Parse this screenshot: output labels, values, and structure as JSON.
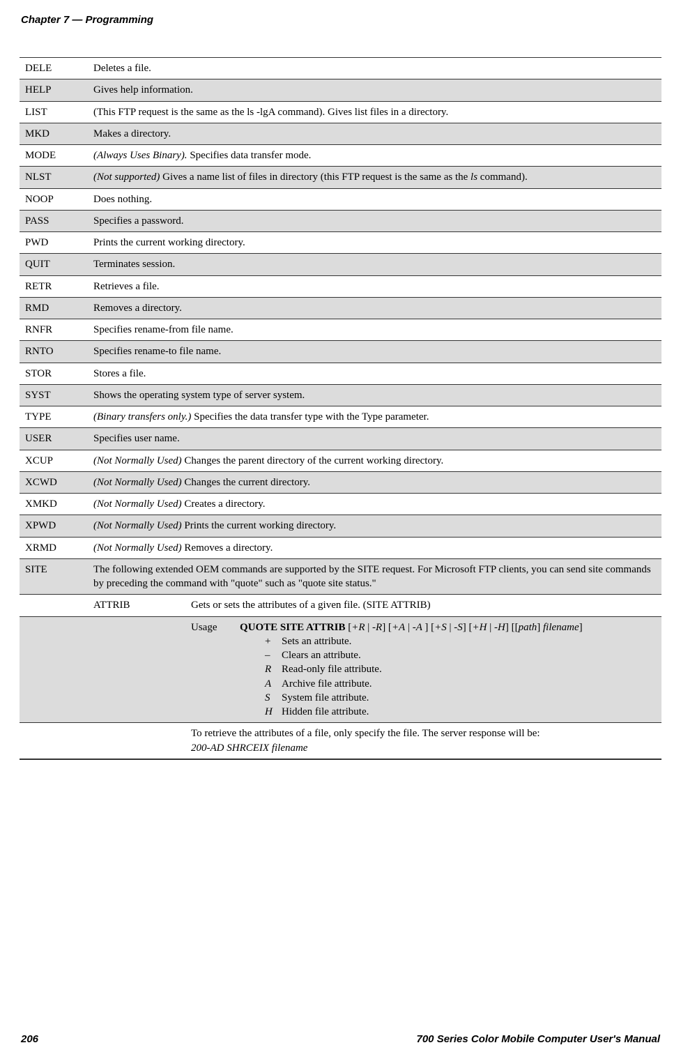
{
  "header": {
    "chapter": "Chapter 7",
    "sep": " —  ",
    "title": "Programming"
  },
  "footer": {
    "page": "206",
    "title": "700 Series Color Mobile Computer User's Manual"
  },
  "rows": [
    {
      "cmd": "DELE",
      "desc": "Deletes a file.",
      "grey": false
    },
    {
      "cmd": "HELP",
      "desc": "Gives help information.",
      "grey": true
    },
    {
      "cmd": "LIST",
      "desc": "(This FTP request is the same as the ls -lgA command). Gives list files in a directory.",
      "grey": false
    },
    {
      "cmd": "MKD",
      "desc": "Makes a directory.",
      "grey": true
    },
    {
      "cmd": "MODE",
      "prefix_i": "(Always Uses Binary).",
      "desc": " Specifies data transfer mode.",
      "grey": false
    },
    {
      "cmd": "NLST",
      "prefix_i": "(Not supported)",
      "desc": " Gives a name list of files in directory (this FTP request is the same as the ",
      "mid_i": "ls",
      "desc2": " command).",
      "grey": true
    },
    {
      "cmd": "NOOP",
      "desc": "Does nothing.",
      "grey": false
    },
    {
      "cmd": "PASS",
      "desc": "Specifies a password.",
      "grey": true
    },
    {
      "cmd": "PWD",
      "desc": "Prints the current working directory.",
      "grey": false
    },
    {
      "cmd": "QUIT",
      "desc": "Terminates session.",
      "grey": true
    },
    {
      "cmd": "RETR",
      "desc": "Retrieves a file.",
      "grey": false
    },
    {
      "cmd": "RMD",
      "desc": "Removes a directory.",
      "grey": true
    },
    {
      "cmd": "RNFR",
      "desc": "Specifies rename-from file name.",
      "grey": false
    },
    {
      "cmd": "RNTO",
      "desc": "Specifies rename-to file name.",
      "grey": true
    },
    {
      "cmd": "STOR",
      "desc": "Stores a file.",
      "grey": false
    },
    {
      "cmd": "SYST",
      "desc": "Shows the operating system type of server system.",
      "grey": true
    },
    {
      "cmd": "TYPE",
      "prefix_i": "(Binary transfers only.)",
      "desc": " Specifies the data transfer type with the Type parameter.",
      "grey": false
    },
    {
      "cmd": "USER",
      "desc": "Specifies user name.",
      "grey": true
    },
    {
      "cmd": "XCUP",
      "prefix_i": "(Not Normally Used)",
      "desc": " Changes the parent directory of the current working directory.",
      "grey": false
    },
    {
      "cmd": "XCWD",
      "prefix_i": "(Not Normally Used)",
      "desc": " Changes the current directory.",
      "grey": true
    },
    {
      "cmd": "XMKD",
      "prefix_i": "(Not Normally Used)",
      "desc": " Creates a directory.",
      "grey": false
    },
    {
      "cmd": "XPWD",
      "prefix_i": "(Not Normally Used)",
      "desc": " Prints the current working directory.",
      "grey": true
    },
    {
      "cmd": "XRMD",
      "prefix_i": "(Not Normally Used)",
      "desc": " Removes a directory.",
      "grey": false
    }
  ],
  "site": {
    "cmd": "SITE",
    "desc": "The following extended OEM commands are supported by the SITE request. For Microsoft FTP clients, you can send site commands by preceding the command with \"quote\" such as \"quote site status.\"",
    "attrib": {
      "name": "ATTRIB",
      "desc": "Gets or sets the attributes of a given file. (SITE ATTRIB)"
    },
    "usage": {
      "label": "Usage",
      "cmd_bold": "QUOTE SITE ATTRIB",
      "tail1": " [",
      "t1i": "+R",
      "t1m": " | ",
      "t1i2": "-R",
      "t1e": "] [",
      "t2i": "+A",
      "t2m": " | ",
      "t2i2": "-A ",
      "t2e": "] [",
      "t3i": "+S",
      "t3m": " | ",
      "t3i2": "-S",
      "t3e": "] [",
      "t4i": "+H",
      "t4m": " | ",
      "t4i2": "-H",
      "t4e": "] [[",
      "t5i": "path",
      "t5e": "] ",
      "t6i": "filename",
      "t6e": "]",
      "items": [
        {
          "k": "+",
          "sym": true,
          "d": "Sets an attribute."
        },
        {
          "k": "–",
          "sym": true,
          "d": "Clears an attribute."
        },
        {
          "k": "R",
          "d": "Read-only file attribute."
        },
        {
          "k": "A",
          "d": "Archive file attribute."
        },
        {
          "k": "S",
          "d": "System file attribute."
        },
        {
          "k": "H",
          "d": "Hidden file attribute."
        }
      ]
    },
    "retrieve": {
      "line1": "To retrieve the attributes of a file, only specify the file. The server response will be:",
      "line2": "200-AD SHRCEIX filename"
    }
  },
  "style": {
    "body_bg": "#ffffff",
    "text_color": "#000000",
    "grey_bg": "#dcdcdc",
    "border_color": "#333333",
    "header_font": "Arial",
    "body_font": "Georgia",
    "body_fontsize": 15,
    "header_fontsize": 15,
    "footer_fontsize": 15
  }
}
